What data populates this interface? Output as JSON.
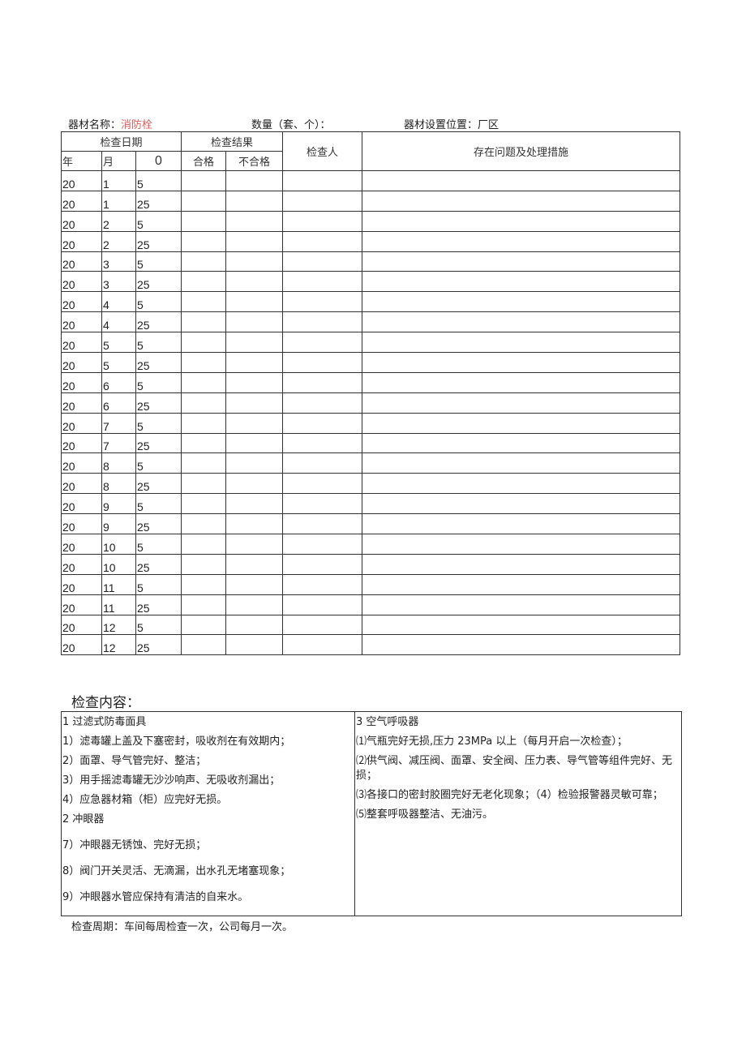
{
  "header": {
    "name_label": "器材名称：",
    "name_value": "消防栓",
    "qty_label": "数量（套、个）：",
    "location_label": "器材设置位置：",
    "location_value": "厂区"
  },
  "table": {
    "date_header": "检查日期",
    "result_header": "检查结果",
    "inspector_header": "检查人",
    "issues_header": "存在问题及处理措施",
    "year": "年",
    "month": "月",
    "day": "0",
    "pass": "合格",
    "fail": "不合格",
    "rows": [
      [
        "20",
        "1",
        "5"
      ],
      [
        "20",
        "1",
        "25"
      ],
      [
        "20",
        "2",
        "5"
      ],
      [
        "20",
        "2",
        "25"
      ],
      [
        "20",
        "3",
        "5"
      ],
      [
        "20",
        "3",
        "25"
      ],
      [
        "20",
        "4",
        "5"
      ],
      [
        "20",
        "4",
        "25"
      ],
      [
        "20",
        "5",
        "5"
      ],
      [
        "20",
        "5",
        "25"
      ],
      [
        "20",
        "6",
        "5"
      ],
      [
        "20",
        "6",
        "25"
      ],
      [
        "20",
        "7",
        "5"
      ],
      [
        "20",
        "7",
        "25"
      ],
      [
        "20",
        "8",
        "5"
      ],
      [
        "20",
        "8",
        "25"
      ],
      [
        "20",
        "9",
        "5"
      ],
      [
        "20",
        "9",
        "25"
      ],
      [
        "20",
        "10",
        "5"
      ],
      [
        "20",
        "10",
        "25"
      ],
      [
        "20",
        "11",
        "5"
      ],
      [
        "20",
        "11",
        "25"
      ],
      [
        "20",
        "12",
        "5"
      ],
      [
        "20",
        "12",
        "25"
      ]
    ]
  },
  "content": {
    "title": "检查内容：",
    "left": [
      "1 过滤式防毒面具",
      "1）滤毒罐上盖及下塞密封，吸收剂在有效期内；",
      "2）面罩、导气管完好、整洁；",
      "3）用手摇滤毒罐无沙沙响声、无吸收剂漏出；",
      "4）应急器材箱（柜）应完好无损。",
      "2 冲眼器",
      "7）冲眼器无锈蚀、完好无损；",
      "8）阀门开关灵活、无滴漏，出水孔无堵塞现象；",
      "9）冲眼器水管应保持有清洁的自来水。"
    ],
    "right": [
      "3 空气呼吸器",
      "⑴气瓶完好无损,压力 23MPa 以上（每月开启一次检查）；",
      "⑵供气阀、减压阀、面罩、安全阀、压力表、导气管等组件完好、无损；",
      "⑶各接口的密封胶圈完好无老化现象；（4）检验报警器灵敏可靠；",
      "⑸整套呼吸器整洁、无油污。"
    ]
  },
  "footer": "检查周期：车间每周检查一次，公司每月一次。"
}
